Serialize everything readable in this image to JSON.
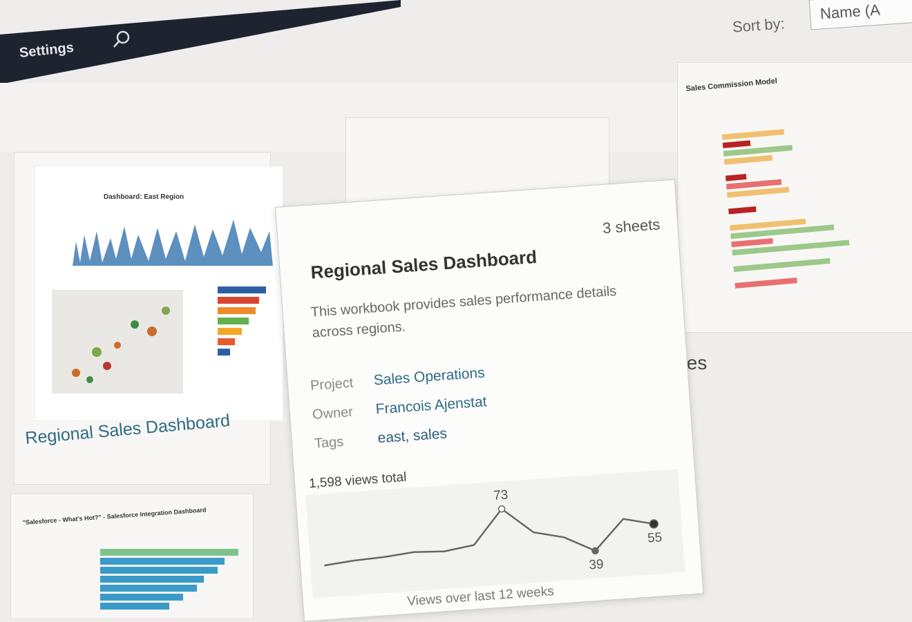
{
  "toolbar": {
    "settings": "Settings",
    "sort_label": "Sort by:",
    "sort_value": "Name (A"
  },
  "cards": [
    {
      "thumbnail_title": "Dashboard: East Region",
      "title": "Regional Sales Dashboard"
    },
    {
      "thumbnail_title": "Sales Commission Model",
      "title": "ales"
    },
    {
      "thumbnail_title": "\"Salesforce - What's Hot?\" - Salesforce Integration Dashboard"
    }
  ],
  "tooltip": {
    "title": "Regional Sales Dashboard",
    "sheets": "3 sheets",
    "description": "This workbook provides sales performance details across regions.",
    "fields": [
      {
        "label": "Project",
        "value": "Sales Operations"
      },
      {
        "label": "Owner",
        "value": "Francois Ajenstat"
      },
      {
        "label": "Tags",
        "value": "east, sales"
      }
    ],
    "views_total": "1,598 views total",
    "chart_data": {
      "type": "line",
      "caption": "Views over last 12 weeks",
      "values": [
        42,
        44,
        45,
        47,
        46,
        49,
        73,
        55,
        50,
        39,
        60,
        55
      ],
      "color": "#666666"
    }
  }
}
